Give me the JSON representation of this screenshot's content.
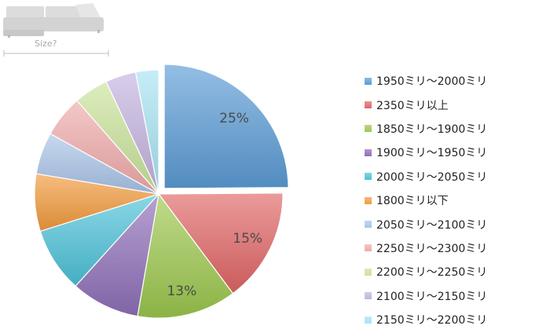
{
  "header": {
    "size_caption": "Size?"
  },
  "chart_data": {
    "type": "pie",
    "start_angle_deg": 0,
    "exploded_first_slice": true,
    "slices": [
      {
        "label": "1950ミリ～2000ミリ",
        "value": 25,
        "pct_label": "25%",
        "color": "#5b9bd5"
      },
      {
        "label": "2350ミリ以上",
        "value": 15,
        "pct_label": "15%",
        "color": "#e06565"
      },
      {
        "label": "1850ミリ～1900ミリ",
        "value": 13,
        "pct_label": "13%",
        "color": "#9cc74d"
      },
      {
        "label": "1900ミリ～1950ミリ",
        "value": 9,
        "color": "#8e6fb8"
      },
      {
        "label": "2000ミリ～2050ミリ",
        "value": 8.5,
        "color": "#4cc1d8"
      },
      {
        "label": "1800ミリ以下",
        "value": 7.5,
        "color": "#f29a3c"
      },
      {
        "label": "2050ミリ～2100ミリ",
        "value": 5.5,
        "color": "#a9c4e8"
      },
      {
        "label": "2250ミリ～2300ミリ",
        "value": 5.5,
        "color": "#f0aaaa"
      },
      {
        "label": "2200ミリ～2250ミリ",
        "value": 4.5,
        "color": "#c9e39a"
      },
      {
        "label": "2100ミリ～2150ミリ",
        "value": 4,
        "color": "#c3b2de"
      },
      {
        "label": "2150ミリ～2200ミリ",
        "value": 3,
        "color": "#a6e4f2"
      }
    ]
  }
}
